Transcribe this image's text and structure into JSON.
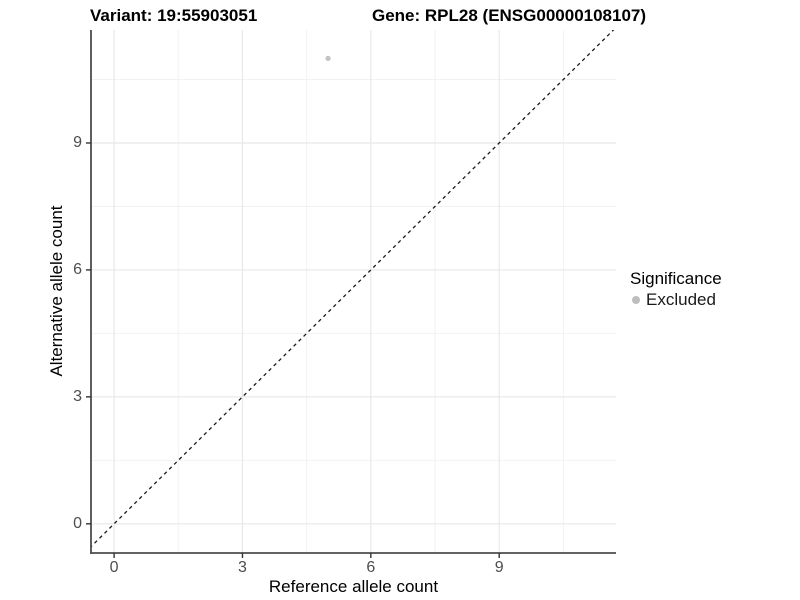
{
  "figure": {
    "variant_label": "Variant: 19:55903051",
    "gene_label": "Gene: RPL28 (ENSG00000108107)"
  },
  "chart_data": {
    "type": "scatter",
    "title": "Variant: 19:55903051 | Gene: RPL28 (ENSG00000108107)",
    "xlabel": "Reference allele count",
    "ylabel": "Alternative allele count",
    "x_ticks": [
      0,
      3,
      6,
      9
    ],
    "y_ticks": [
      0,
      3,
      6,
      9
    ],
    "x_minor": [
      1.5,
      4.5,
      7.5,
      10.5
    ],
    "y_minor": [
      1.5,
      4.5,
      7.5,
      10.5
    ],
    "xlim": [
      -0.54,
      11.73
    ],
    "ylim": [
      -0.69,
      11.67
    ],
    "grid": "major+minor",
    "points": [
      {
        "x": 5,
        "y": 11,
        "series": "Excluded"
      }
    ],
    "reference_line": {
      "type": "diagonal",
      "equation": "y = x",
      "style": "dashed",
      "color": "#1a1a1a"
    },
    "legend": {
      "position": "right",
      "title": "Significance",
      "items": [
        {
          "label": "Excluded",
          "color": "#bebebe",
          "marker": "circle"
        }
      ]
    },
    "colors": {
      "point": "#c3c3c3",
      "grid_major": "#e8e8e8",
      "grid_minor": "#f2f2f2",
      "axis_line": "#4d4d4d",
      "tick_mark": "#333333",
      "tick_label": "#4d4d4d"
    }
  }
}
